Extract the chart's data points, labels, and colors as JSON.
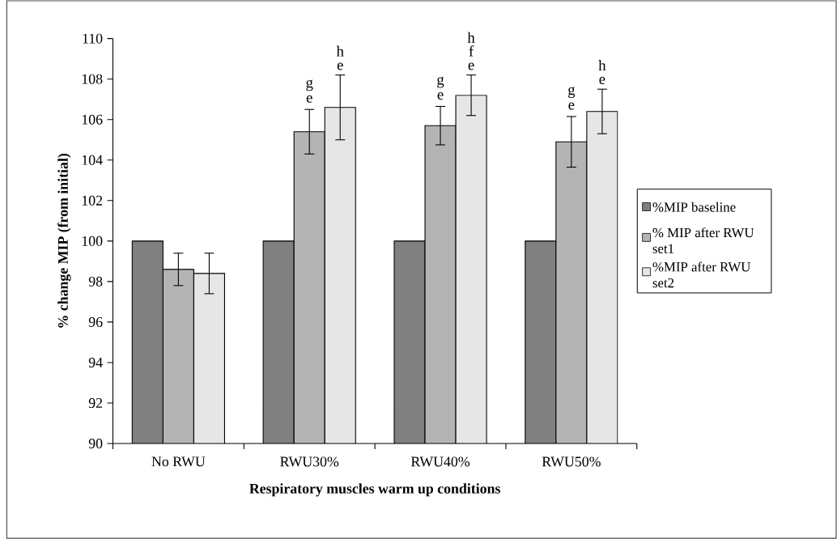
{
  "chart_data": {
    "type": "bar",
    "xlabel": "Respiratory muscles warm up conditions",
    "ylabel": "% change MIP (from initial)",
    "categories": [
      "No RWU",
      "RWU30%",
      "RWU40%",
      "RWU50%"
    ],
    "series": [
      {
        "name": "%MIP baseline",
        "color": "#808080",
        "values": [
          100,
          100,
          100,
          100
        ]
      },
      {
        "name": "% MIP after RWU set1",
        "color": "#b4b4b4",
        "values": [
          98.6,
          105.4,
          105.7,
          104.9
        ],
        "errors": [
          0.8,
          1.1,
          0.95,
          1.25
        ]
      },
      {
        "name": "%MIP after RWU set2",
        "color": "#e6e6e6",
        "values": [
          98.4,
          106.6,
          107.2,
          106.4
        ],
        "errors": [
          1.0,
          1.6,
          1.0,
          1.1
        ]
      }
    ],
    "ylim": [
      90,
      110
    ],
    "yticks": [
      90,
      92,
      94,
      96,
      98,
      100,
      102,
      104,
      106,
      108,
      110
    ],
    "legend": "right",
    "annotations": [
      {
        "text": "g",
        "x": "RWU30%",
        "y": 105.4
      },
      {
        "text": "e",
        "x": "RWU30%",
        "y": 105.4
      },
      {
        "text": "g",
        "x": "RWU40%",
        "y": 105.7
      },
      {
        "text": "e",
        "x": "RWU40%",
        "y": 105.7
      },
      {
        "text": "g",
        "x": "RWU50%",
        "y": 104.9
      },
      {
        "text": "e",
        "x": "RWU50%",
        "y": 104.9
      },
      "h e",
      "h f e",
      "h e"
    ]
  }
}
